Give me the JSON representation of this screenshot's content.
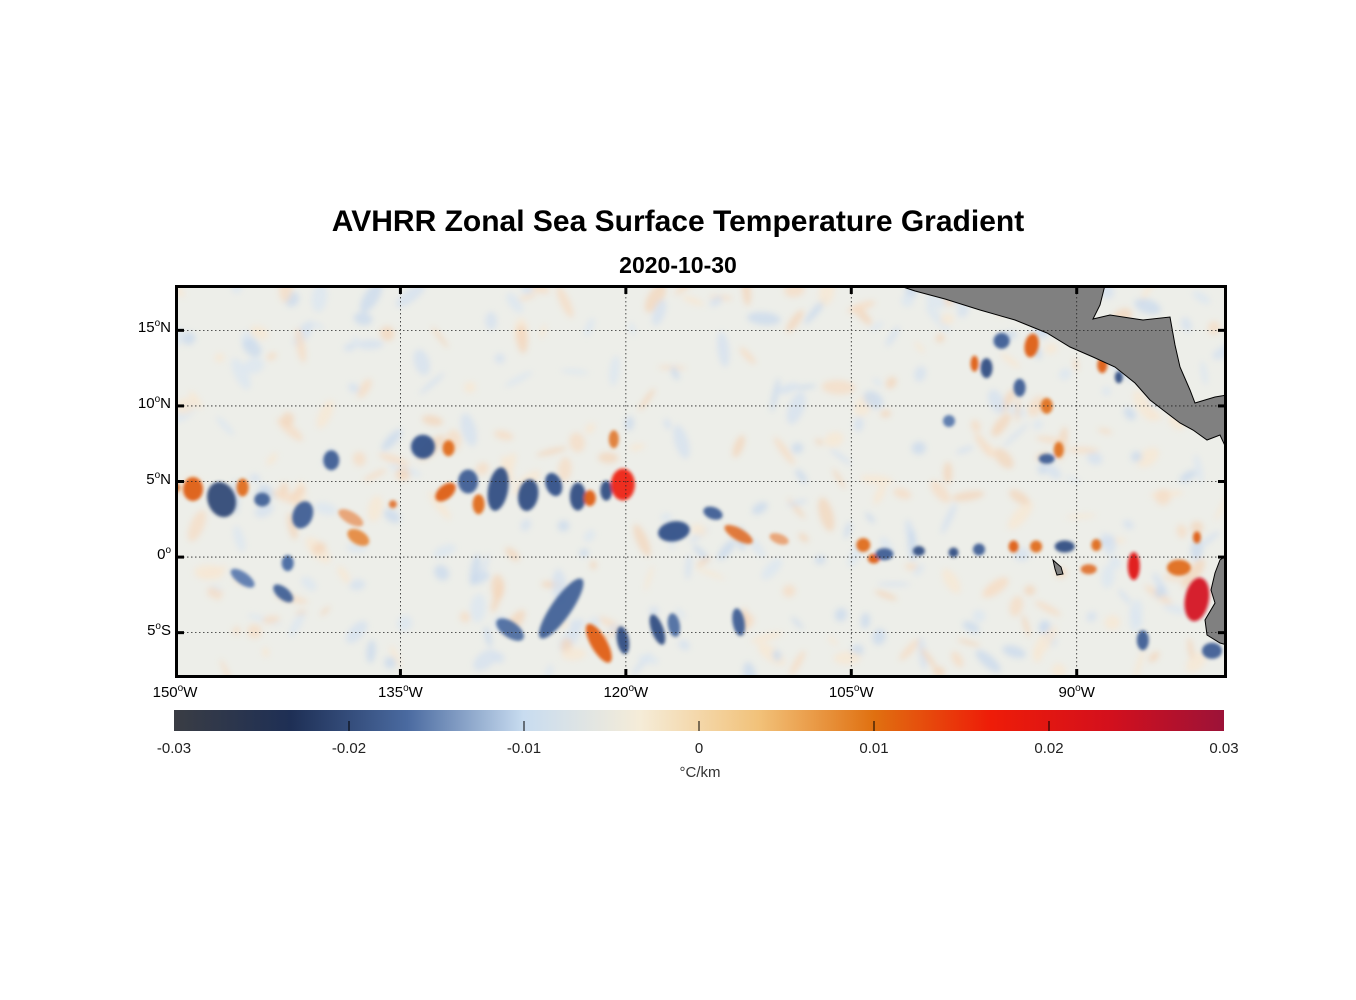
{
  "title": "AVHRR Zonal Sea Surface Temperature Gradient",
  "subtitle": "2020-10-30",
  "lat_ticks": [
    {
      "deg": "15",
      "hemi": "N",
      "lat": 15
    },
    {
      "deg": "10",
      "hemi": "N",
      "lat": 10
    },
    {
      "deg": "5",
      "hemi": "N",
      "lat": 5
    },
    {
      "deg": "0",
      "hemi": "",
      "lat": 0
    },
    {
      "deg": "5",
      "hemi": "S",
      "lat": -5
    }
  ],
  "lon_ticks": [
    {
      "deg": "150",
      "hemi": "W",
      "lon": -150
    },
    {
      "deg": "135",
      "hemi": "W",
      "lon": -135
    },
    {
      "deg": "120",
      "hemi": "W",
      "lon": -120
    },
    {
      "deg": "105",
      "hemi": "W",
      "lon": -105
    },
    {
      "deg": "90",
      "hemi": "W",
      "lon": -90
    }
  ],
  "extent": {
    "lon_min": -150,
    "lon_max": -80,
    "lat_min": -8,
    "lat_max": 18
  },
  "colorbar": {
    "min": -0.03,
    "max": 0.03,
    "tick_labels": [
      "-0.03",
      "-0.02",
      "-0.01",
      "0",
      "0.01",
      "0.02",
      "0.03"
    ],
    "tick_values": [
      -0.03,
      -0.02,
      -0.01,
      0,
      0.01,
      0.02,
      0.03
    ],
    "unit": "°C/km",
    "colors": [
      "#3a3d44",
      "#1e2f55",
      "#4a6aa0",
      "#c8dcf0",
      "#f5ecd8",
      "#f2c27a",
      "#e07010",
      "#ee1c08",
      "#d4101c",
      "#9c1238"
    ]
  },
  "land_color": "#808080",
  "colors": {
    "cold": "#2a4d8a",
    "warm": "#dd5a10",
    "hot": "#e01010"
  }
}
